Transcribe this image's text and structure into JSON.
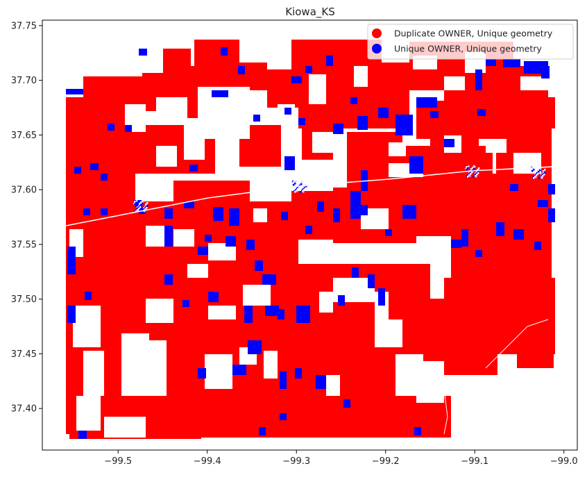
{
  "title": "Kiowa_KS",
  "legend": {
    "placement": "top-right",
    "entries": [
      {
        "label": "Duplicate OWNER, Unique geometry",
        "color": "#ff0000"
      },
      {
        "label": "Unique OWNER, Unique geometry",
        "color": "#0000ff"
      }
    ]
  },
  "axes": {
    "xlim": [
      -99.585,
      -98.985
    ],
    "ylim": [
      37.362,
      37.755
    ],
    "x_ticks": [
      -99.5,
      -99.4,
      -99.3,
      -99.2,
      -99.1,
      -99.0
    ],
    "x_tick_labels": [
      "−99.5",
      "−99.4",
      "−99.3",
      "−99.2",
      "−99.1",
      "−99.0"
    ],
    "y_ticks": [
      37.4,
      37.45,
      37.5,
      37.55,
      37.6,
      37.65,
      37.7,
      37.75
    ],
    "y_tick_labels": [
      "37.40",
      "37.45",
      "37.50",
      "37.55",
      "37.60",
      "37.65",
      "37.70",
      "37.75"
    ]
  },
  "map": {
    "fill_colors": {
      "duplicate": "#ff0000",
      "unique": "#0000ff",
      "background": "#ffffff"
    }
  }
}
